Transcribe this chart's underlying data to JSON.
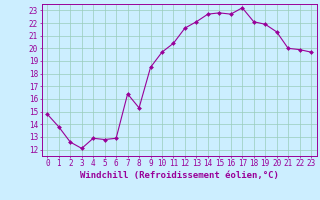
{
  "x": [
    0,
    1,
    2,
    3,
    4,
    5,
    6,
    7,
    8,
    9,
    10,
    11,
    12,
    13,
    14,
    15,
    16,
    17,
    18,
    19,
    20,
    21,
    22,
    23
  ],
  "y": [
    14.8,
    13.8,
    12.6,
    12.1,
    12.9,
    12.8,
    12.9,
    16.4,
    15.3,
    18.5,
    19.7,
    20.4,
    21.6,
    22.1,
    22.7,
    22.8,
    22.7,
    23.2,
    22.1,
    21.9,
    21.3,
    20.0,
    19.9,
    19.7
  ],
  "line_color": "#990099",
  "marker_color": "#990099",
  "bg_color": "#cceeff",
  "grid_color": "#99ccbb",
  "axis_color": "#990099",
  "xlabel": "Windchill (Refroidissement éolien,°C)",
  "xlabel_fontsize": 6.5,
  "tick_fontsize": 5.5,
  "ylim_min": 11.5,
  "ylim_max": 23.5,
  "xlim_min": -0.5,
  "xlim_max": 23.5,
  "yticks": [
    12,
    13,
    14,
    15,
    16,
    17,
    18,
    19,
    20,
    21,
    22,
    23
  ]
}
